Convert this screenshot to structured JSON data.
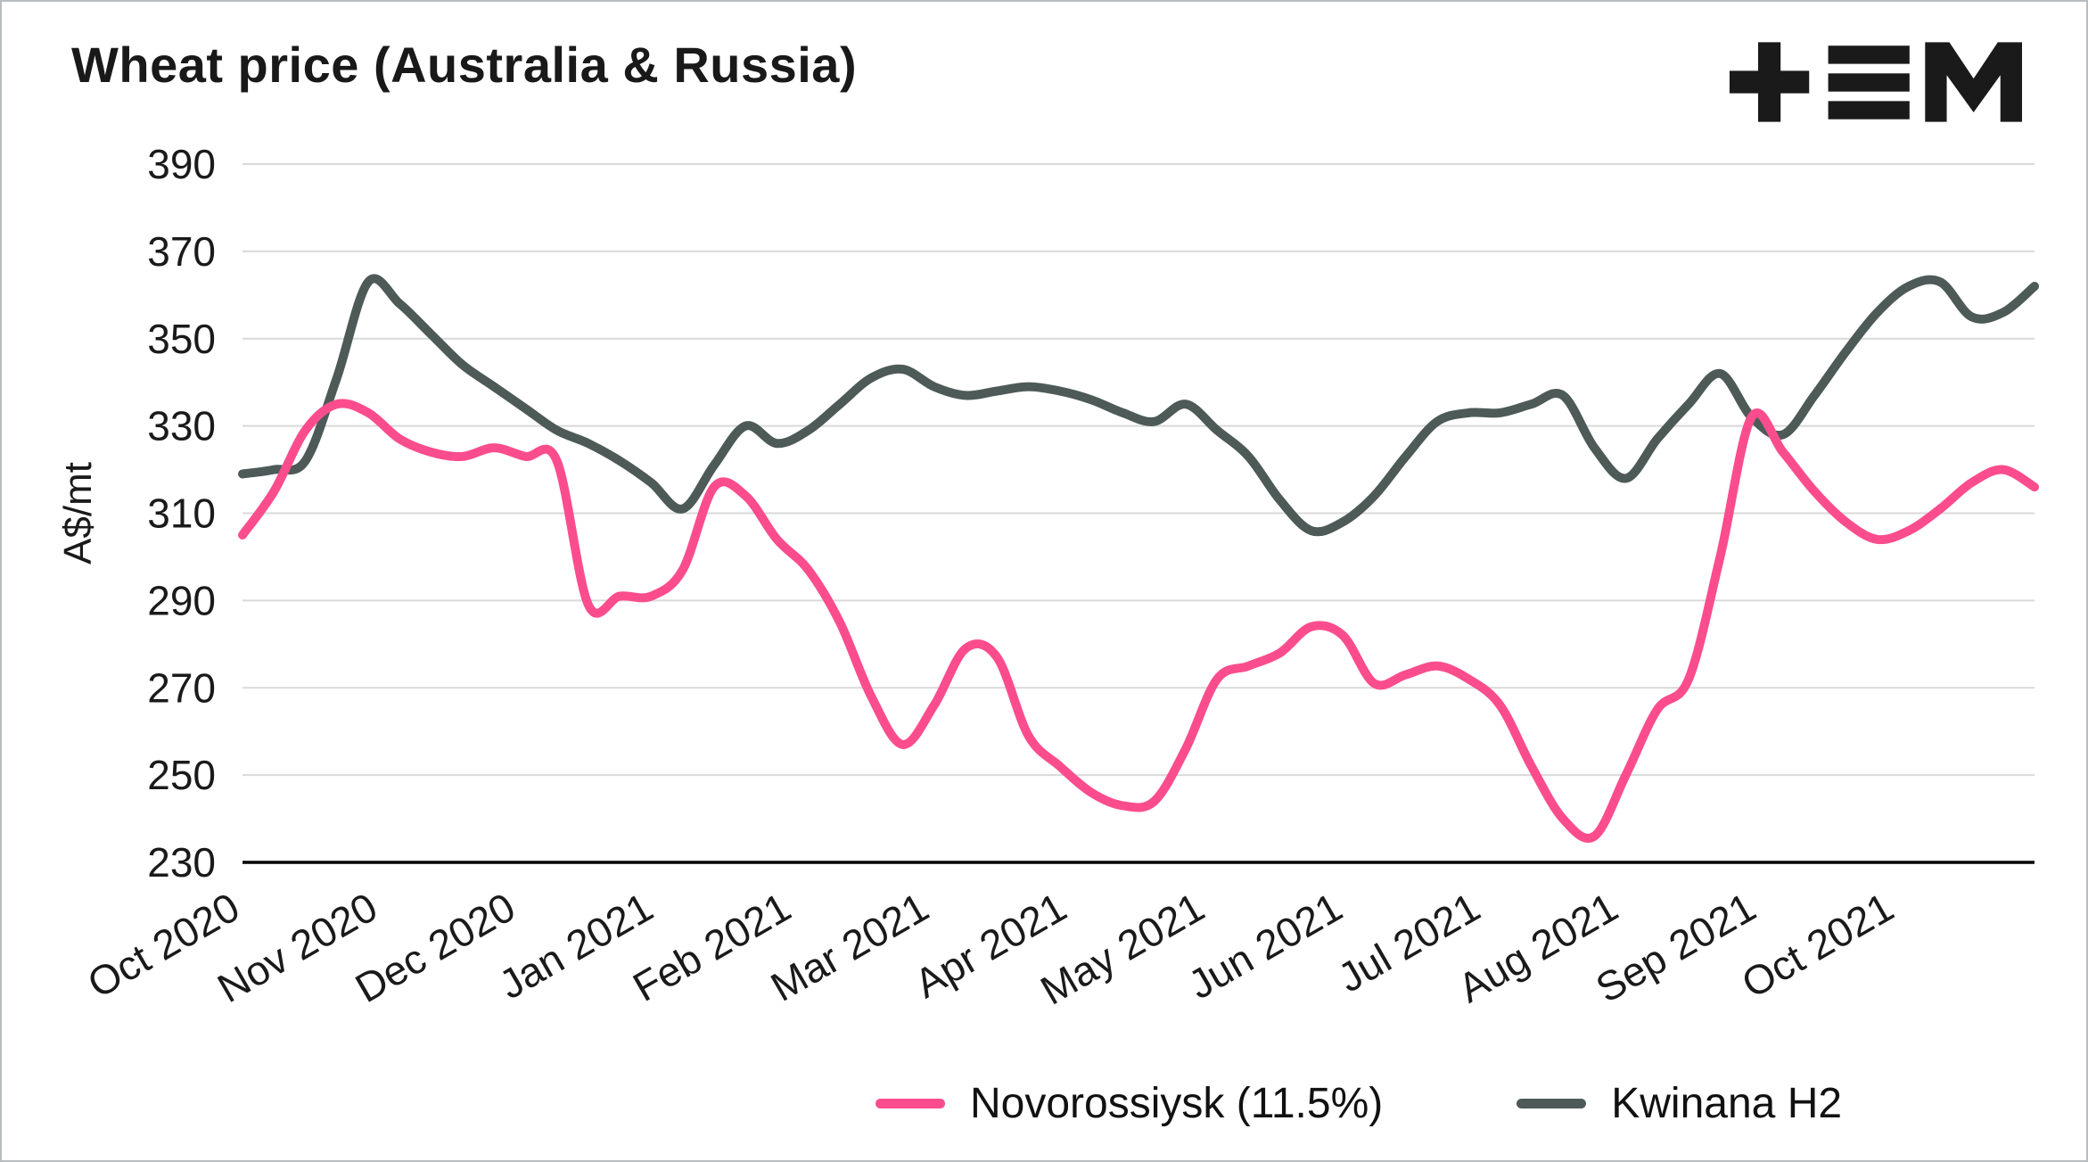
{
  "title": "Wheat price (Australia & Russia)",
  "logo": {
    "name": "tem-logo",
    "color": "#1a1a1a"
  },
  "legend": {
    "items": [
      {
        "label": "Novorossiysk (11.5%)"
      },
      {
        "label": "Kwinana H2"
      }
    ]
  },
  "chart_data": {
    "type": "line",
    "title": "Wheat price (Australia & Russia)",
    "xlabel": "",
    "ylabel": "A$/mt",
    "ylim": [
      230,
      390
    ],
    "y_ticks": [
      390,
      370,
      350,
      330,
      310,
      290,
      270,
      250,
      230
    ],
    "grid": "horizontal",
    "gridline_color": "#d9d9d9",
    "baseline_color": "#000000",
    "legend_position": "bottom",
    "x_unit": "weeks",
    "points_per_month": 4.3846,
    "x_tick_labels": [
      "Oct 2020",
      "Nov 2020",
      "Dec 2020",
      "Jan 2021",
      "Feb 2021",
      "Mar 2021",
      "Apr 2021",
      "May 2021",
      "Jun 2021",
      "Jul 2021",
      "Aug 2021",
      "Sep 2021",
      "Oct 2021"
    ],
    "series": [
      {
        "name": "Novorossiysk (11.5%)",
        "color": "#fb4d8d",
        "values": [
          305,
          315,
          329,
          335,
          333,
          327,
          324,
          323,
          325,
          323,
          322,
          289,
          291,
          291,
          297,
          316,
          314,
          304,
          297,
          285,
          268,
          257,
          266,
          279,
          277,
          259,
          252,
          246,
          243,
          244,
          256,
          272,
          275,
          278,
          284,
          282,
          271,
          273,
          275,
          272,
          266,
          252,
          240,
          236,
          250,
          265,
          272,
          300,
          332,
          324,
          315,
          308,
          304,
          306,
          311,
          317,
          320,
          316
        ]
      },
      {
        "name": "Kwinana H2",
        "color": "#4d5a58",
        "values": [
          319,
          320,
          322,
          341,
          363,
          358,
          351,
          344,
          339,
          334,
          329,
          326,
          322,
          317,
          311,
          321,
          330,
          326,
          329,
          335,
          341,
          343,
          339,
          337,
          338,
          339,
          338,
          336,
          333,
          331,
          335,
          329,
          323,
          313,
          306,
          308,
          314,
          323,
          331,
          333,
          333,
          335,
          337,
          325,
          318,
          327,
          335,
          342,
          332,
          328,
          337,
          347,
          356,
          362,
          363,
          355,
          356,
          362
        ]
      }
    ]
  }
}
